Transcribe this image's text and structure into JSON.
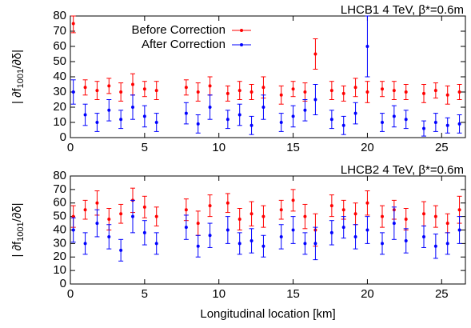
{
  "chart_data": [
    {
      "type": "scatter",
      "title": "LHCB1 4 TeV, β*=0.6m",
      "ylabel": {
        "main": "| ∂f",
        "sub": "1001",
        "tail": "/∂δ|"
      },
      "xlim": [
        0,
        26.6
      ],
      "ylim": [
        0,
        80
      ],
      "xticks": [
        0,
        5,
        10,
        15,
        20,
        25
      ],
      "yticks": [
        0,
        10,
        20,
        30,
        40,
        50,
        60,
        70,
        80
      ],
      "legend": "top-left",
      "x": [
        0.2,
        1,
        1.8,
        2.6,
        3.4,
        4.2,
        5,
        5.8,
        7.8,
        8.6,
        9.4,
        10.6,
        11.4,
        12.2,
        13,
        14.2,
        15,
        15.8,
        16.5,
        17.6,
        18.4,
        19.2,
        20,
        21,
        21.8,
        22.6,
        23.8,
        24.6,
        25.4,
        26.2
      ],
      "series": [
        {
          "name": "Before Correction",
          "color": "#ff0000",
          "values": [
            75,
            33,
            31,
            34,
            30,
            35,
            32,
            31,
            33,
            30,
            34,
            29,
            31,
            30,
            33,
            28,
            32,
            30,
            55,
            31,
            29,
            33,
            30,
            32,
            31,
            30,
            29,
            31,
            28,
            30
          ],
          "errors": [
            6,
            5,
            6,
            5,
            6,
            7,
            5,
            6,
            5,
            6,
            6,
            5,
            6,
            5,
            7,
            6,
            5,
            6,
            10,
            6,
            5,
            6,
            7,
            5,
            6,
            5,
            6,
            5,
            6,
            5
          ]
        },
        {
          "name": "After Correction",
          "color": "#0000ff",
          "values": [
            30,
            15,
            10,
            18,
            12,
            20,
            14,
            10,
            16,
            9,
            20,
            12,
            15,
            8,
            20,
            10,
            14,
            18,
            25,
            12,
            8,
            16,
            60,
            10,
            14,
            12,
            6,
            10,
            8,
            9
          ],
          "errors": [
            8,
            7,
            6,
            7,
            6,
            8,
            7,
            6,
            7,
            6,
            8,
            6,
            7,
            6,
            8,
            6,
            7,
            7,
            10,
            6,
            6,
            7,
            20,
            6,
            7,
            6,
            5,
            6,
            5,
            6
          ]
        }
      ]
    },
    {
      "type": "scatter",
      "title": "LHCB2 4 TeV, β*=0.6m",
      "ylabel": {
        "main": "| ∂f",
        "sub": "1001",
        "tail": "/∂δ|"
      },
      "xlabel": "Longitudinal location [km]",
      "xlim": [
        0,
        26.6
      ],
      "ylim": [
        0,
        80
      ],
      "xticks": [
        0,
        5,
        10,
        15,
        20,
        25
      ],
      "yticks": [
        0,
        10,
        20,
        30,
        40,
        50,
        60,
        70,
        80
      ],
      "x": [
        0.2,
        1,
        1.8,
        2.6,
        3.4,
        4.2,
        5,
        5.8,
        7.8,
        8.6,
        9.4,
        10.6,
        11.4,
        12.2,
        13,
        14.2,
        15,
        15.8,
        16.5,
        17.6,
        18.4,
        19.2,
        20,
        21,
        21.8,
        22.6,
        23.8,
        24.6,
        25.4,
        26.2
      ],
      "series": [
        {
          "color": "#ff0000",
          "values": [
            50,
            55,
            60,
            48,
            52,
            62,
            57,
            50,
            55,
            45,
            58,
            60,
            48,
            52,
            50,
            55,
            62,
            50,
            40,
            58,
            55,
            52,
            60,
            50,
            55,
            48,
            52,
            50,
            45,
            55
          ],
          "errors": [
            8,
            7,
            9,
            8,
            7,
            9,
            8,
            7,
            8,
            9,
            8,
            7,
            8,
            9,
            8,
            7,
            8,
            9,
            12,
            8,
            7,
            8,
            9,
            8,
            7,
            8,
            9,
            8,
            7,
            10
          ]
        },
        {
          "color": "#0000ff",
          "values": [
            40,
            30,
            45,
            35,
            25,
            50,
            38,
            30,
            42,
            28,
            36,
            40,
            30,
            32,
            28,
            35,
            40,
            30,
            30,
            38,
            42,
            35,
            40,
            30,
            45,
            32,
            35,
            28,
            30,
            40
          ],
          "errors": [
            9,
            8,
            10,
            9,
            8,
            12,
            9,
            8,
            9,
            8,
            9,
            10,
            8,
            9,
            8,
            9,
            10,
            8,
            12,
            9,
            8,
            9,
            10,
            8,
            12,
            9,
            8,
            9,
            8,
            10
          ]
        }
      ]
    }
  ]
}
